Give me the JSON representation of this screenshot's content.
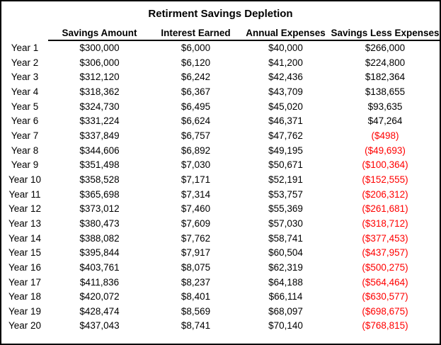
{
  "colors": {
    "background": "#FFFFFF",
    "border": "#000000",
    "text": "#000000",
    "negative_value": "#FF0000"
  },
  "chart_data": {
    "type": "table",
    "title": "Retirment Savings Depletion",
    "columns": [
      "",
      "Savings Amount",
      "Interest Earned",
      "Annual Expenses",
      "Savings Less Expenses"
    ],
    "rows": [
      {
        "label": "Year 1",
        "values": [
          "$300,000",
          "$6,000",
          "$40,000",
          "$266,000"
        ],
        "negative_net": false
      },
      {
        "label": "Year 2",
        "values": [
          "$306,000",
          "$6,120",
          "$41,200",
          "$224,800"
        ],
        "negative_net": false
      },
      {
        "label": "Year 3",
        "values": [
          "$312,120",
          "$6,242",
          "$42,436",
          "$182,364"
        ],
        "negative_net": false
      },
      {
        "label": "Year 4",
        "values": [
          "$318,362",
          "$6,367",
          "$43,709",
          "$138,655"
        ],
        "negative_net": false
      },
      {
        "label": "Year 5",
        "values": [
          "$324,730",
          "$6,495",
          "$45,020",
          "$93,635"
        ],
        "negative_net": false
      },
      {
        "label": "Year 6",
        "values": [
          "$331,224",
          "$6,624",
          "$46,371",
          "$47,264"
        ],
        "negative_net": false
      },
      {
        "label": "Year 7",
        "values": [
          "$337,849",
          "$6,757",
          "$47,762",
          "($498)"
        ],
        "negative_net": true
      },
      {
        "label": "Year 8",
        "values": [
          "$344,606",
          "$6,892",
          "$49,195",
          "($49,693)"
        ],
        "negative_net": true
      },
      {
        "label": "Year 9",
        "values": [
          "$351,498",
          "$7,030",
          "$50,671",
          "($100,364)"
        ],
        "negative_net": true
      },
      {
        "label": "Year 10",
        "values": [
          "$358,528",
          "$7,171",
          "$52,191",
          "($152,555)"
        ],
        "negative_net": true
      },
      {
        "label": "Year 11",
        "values": [
          "$365,698",
          "$7,314",
          "$53,757",
          "($206,312)"
        ],
        "negative_net": true
      },
      {
        "label": "Year 12",
        "values": [
          "$373,012",
          "$7,460",
          "$55,369",
          "($261,681)"
        ],
        "negative_net": true
      },
      {
        "label": "Year 13",
        "values": [
          "$380,473",
          "$7,609",
          "$57,030",
          "($318,712)"
        ],
        "negative_net": true
      },
      {
        "label": "Year 14",
        "values": [
          "$388,082",
          "$7,762",
          "$58,741",
          "($377,453)"
        ],
        "negative_net": true
      },
      {
        "label": "Year 15",
        "values": [
          "$395,844",
          "$7,917",
          "$60,504",
          "($437,957)"
        ],
        "negative_net": true
      },
      {
        "label": "Year 16",
        "values": [
          "$403,761",
          "$8,075",
          "$62,319",
          "($500,275)"
        ],
        "negative_net": true
      },
      {
        "label": "Year 17",
        "values": [
          "$411,836",
          "$8,237",
          "$64,188",
          "($564,464)"
        ],
        "negative_net": true
      },
      {
        "label": "Year 18",
        "values": [
          "$420,072",
          "$8,401",
          "$66,114",
          "($630,577)"
        ],
        "negative_net": true
      },
      {
        "label": "Year 19",
        "values": [
          "$428,474",
          "$8,569",
          "$68,097",
          "($698,675)"
        ],
        "negative_net": true
      },
      {
        "label": "Year 20",
        "values": [
          "$437,043",
          "$8,741",
          "$70,140",
          "($768,815)"
        ],
        "negative_net": true
      }
    ]
  }
}
